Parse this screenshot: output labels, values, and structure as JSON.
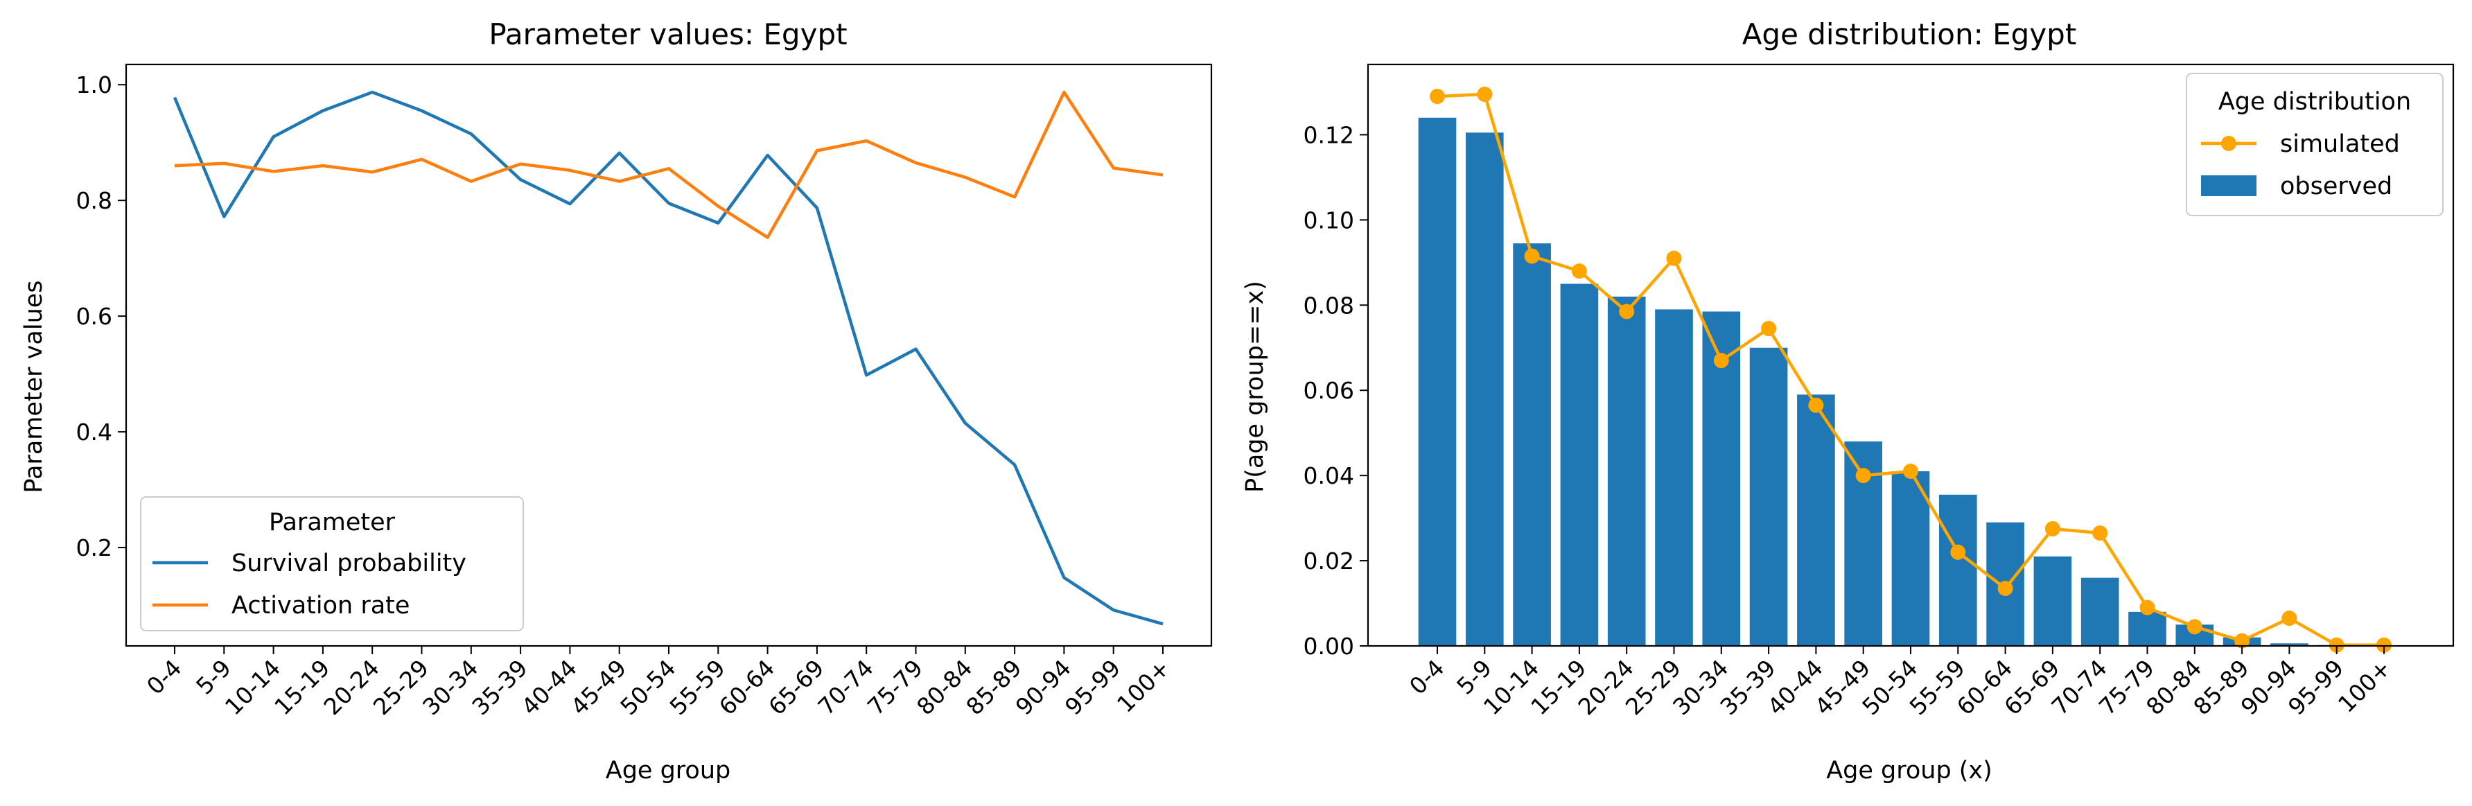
{
  "chart_data": [
    {
      "type": "line",
      "title": "Parameter values: Egypt",
      "xlabel": "Age group",
      "ylabel": "Parameter values",
      "categories": [
        "0-4",
        "5-9",
        "10-14",
        "15-19",
        "20-24",
        "25-29",
        "30-34",
        "35-39",
        "40-44",
        "45-49",
        "50-54",
        "55-59",
        "60-64",
        "65-69",
        "70-74",
        "75-79",
        "80-84",
        "85-89",
        "90-94",
        "95-99",
        "100+"
      ],
      "ylim": [
        0.03,
        1.035
      ],
      "yticks": [
        0.2,
        0.4,
        0.6,
        0.8,
        1.0
      ],
      "ytick_labels": [
        "0.2",
        "0.4",
        "0.6",
        "0.8",
        "1.0"
      ],
      "grid": false,
      "legend": {
        "title": "Parameter",
        "placement": "lower-left"
      },
      "series": [
        {
          "name": "Survival probability",
          "color": "#1f77b4",
          "values": [
            0.978,
            0.772,
            0.91,
            0.955,
            0.987,
            0.955,
            0.915,
            0.836,
            0.794,
            0.882,
            0.795,
            0.761,
            0.878,
            0.787,
            0.498,
            0.543,
            0.415,
            0.343,
            0.148,
            0.092,
            0.068
          ]
        },
        {
          "name": "Activation rate",
          "color": "#ff7f0e",
          "values": [
            0.86,
            0.864,
            0.85,
            0.86,
            0.849,
            0.871,
            0.833,
            0.863,
            0.852,
            0.833,
            0.855,
            0.79,
            0.736,
            0.886,
            0.903,
            0.865,
            0.84,
            0.806,
            0.987,
            0.856,
            0.844
          ]
        }
      ]
    },
    {
      "type": "bar",
      "title": "Age distribution: Egypt",
      "xlabel": "Age group (x)",
      "ylabel": "P(age group==x)",
      "categories": [
        "0-4",
        "5-9",
        "10-14",
        "15-19",
        "20-24",
        "25-29",
        "30-34",
        "35-39",
        "40-44",
        "45-49",
        "50-54",
        "55-59",
        "60-64",
        "65-69",
        "70-74",
        "75-79",
        "80-84",
        "85-89",
        "90-94",
        "95-99",
        "100+"
      ],
      "ylim": [
        0,
        0.1365
      ],
      "yticks": [
        0.0,
        0.02,
        0.04,
        0.06,
        0.08,
        0.1,
        0.12
      ],
      "ytick_labels": [
        "0.00",
        "0.02",
        "0.04",
        "0.06",
        "0.08",
        "0.10",
        "0.12"
      ],
      "grid": false,
      "legend": {
        "title": "Age distribution",
        "placement": "top-right"
      },
      "series": [
        {
          "name": "observed",
          "kind": "bar",
          "color": "#1f77b4",
          "values": [
            0.124,
            0.1205,
            0.0945,
            0.085,
            0.082,
            0.079,
            0.0785,
            0.07,
            0.059,
            0.048,
            0.041,
            0.0355,
            0.029,
            0.021,
            0.016,
            0.008,
            0.005,
            0.002,
            0.0006,
            0.0002,
            0.0001
          ]
        },
        {
          "name": "simulated",
          "kind": "line-marker",
          "color": "#ffa500",
          "values": [
            0.129,
            0.1295,
            0.0915,
            0.088,
            0.0785,
            0.091,
            0.067,
            0.0745,
            0.0565,
            0.04,
            0.041,
            0.022,
            0.0135,
            0.0275,
            0.0265,
            0.009,
            0.0045,
            0.0012,
            0.0065,
            0.0002,
            0.0002
          ]
        }
      ]
    }
  ]
}
